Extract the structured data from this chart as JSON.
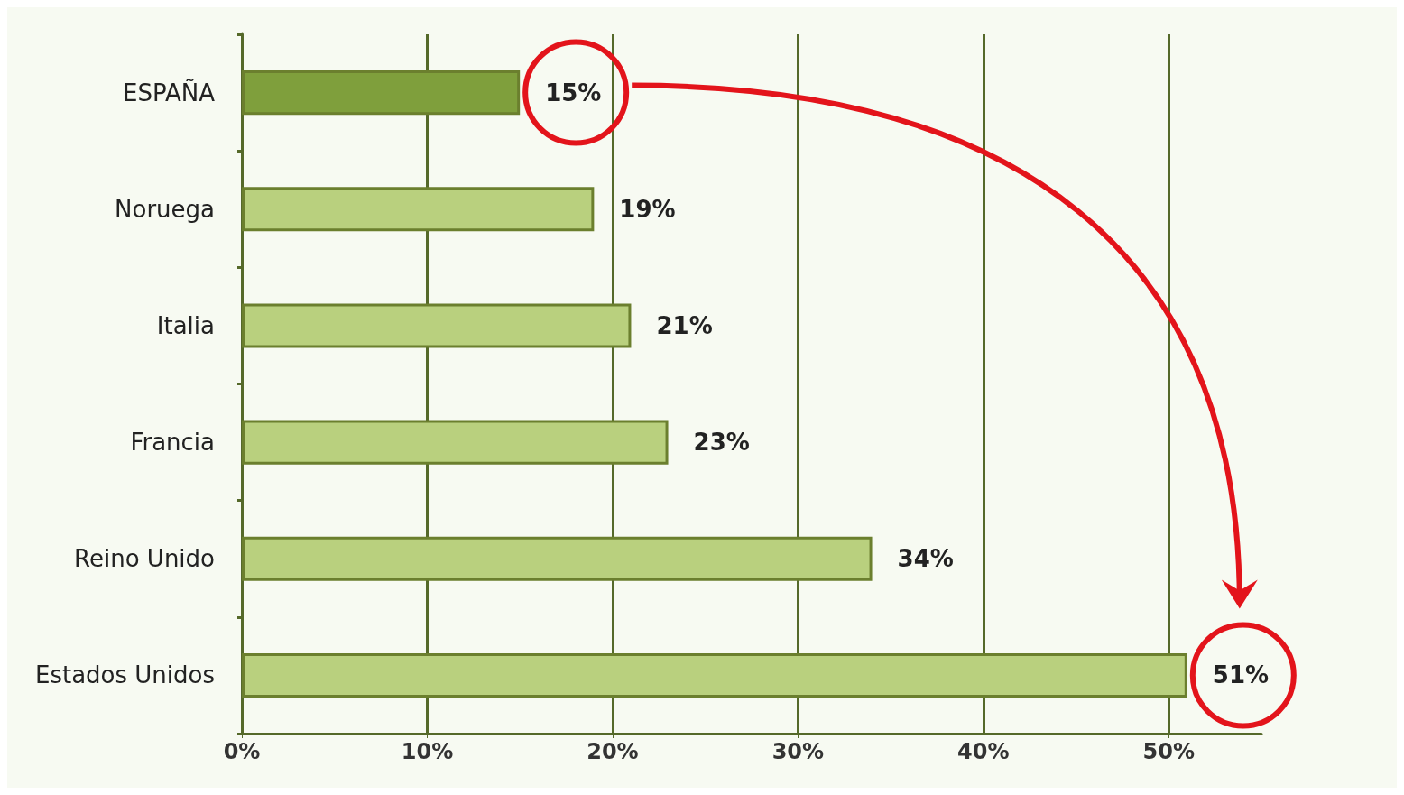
{
  "chart_data": {
    "type": "bar",
    "orientation": "horizontal",
    "categories": [
      "ESPAÑA",
      "Noruega",
      "Italia",
      "Francia",
      "Reino Unido",
      "Estados Unidos"
    ],
    "values": [
      15,
      19,
      21,
      23,
      34,
      51
    ],
    "colors": [
      "#7f9f3c",
      "#b9d07e",
      "#b9d07e",
      "#b9d07e",
      "#b9d07e",
      "#b9d07e"
    ],
    "value_labels": [
      "15%",
      "19%",
      "21%",
      "23%",
      "34%",
      "51%"
    ],
    "xlim": [
      0,
      55
    ],
    "xticks": [
      {
        "value": 0,
        "label": "0%"
      },
      {
        "value": 10,
        "label": "10%"
      },
      {
        "value": 20,
        "label": "20%"
      },
      {
        "value": 30,
        "label": "30%"
      },
      {
        "value": 40,
        "label": "40%"
      },
      {
        "value": 50,
        "label": "50%"
      }
    ],
    "grid": "x"
  }
}
